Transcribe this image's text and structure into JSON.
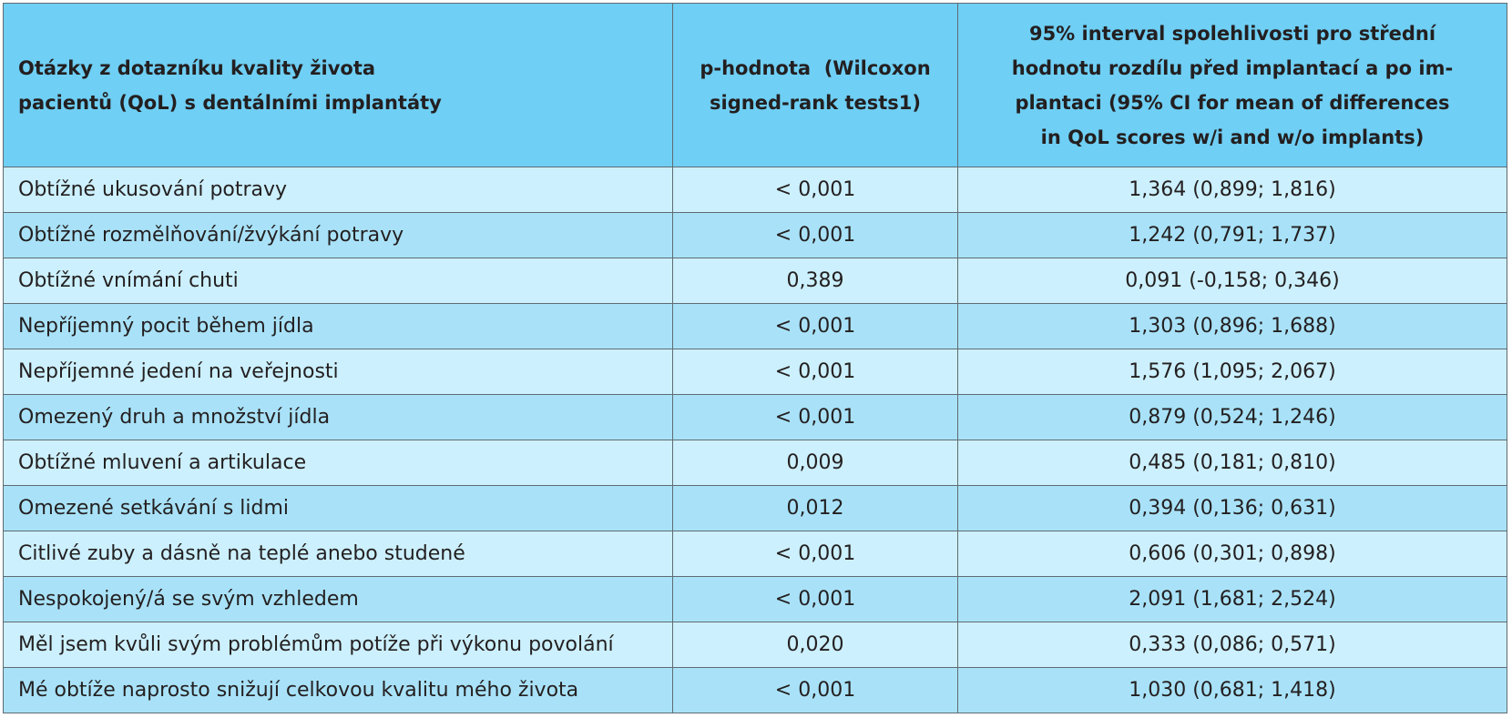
{
  "header": {
    "question": "Otázky z dotazníku kvality života pacientů (QoL) s dentálními implantáty",
    "pvalue": "p-hodnota  (Wilcoxon signed-rank tests1)",
    "ci": "95% interval spolehlivosti pro střední hodnotu rozdílu před implantací a po implantaci (95% CI for mean of differences in QoL scores w/i and w/o implants)"
  },
  "header_lines": {
    "question": [
      "Otázky z dotazníku kvality života",
      "pacientů (QoL) s dentálními implantáty"
    ],
    "pvalue": [
      "p-hodnota  (Wilcoxon",
      "signed-rank tests1)"
    ],
    "ci": [
      "95% interval spolehlivosti pro střední",
      "hodnotu rozdílu před implantací a po im-",
      "plantaci (95% CI for mean of differences",
      "in QoL scores w/i and w/o implants)"
    ]
  },
  "rows": [
    {
      "question": "Obtížné ukusování potravy",
      "p": "< 0,001",
      "ci": "1,364 (0,899; 1,816)"
    },
    {
      "question": "Obtížné rozmělňování/žvýkání potravy",
      "p": "< 0,001",
      "ci": "1,242 (0,791; 1,737)"
    },
    {
      "question": "Obtížné vnímání chuti",
      "p": "0,389",
      "ci": "0,091 (-0,158; 0,346)"
    },
    {
      "question": "Nepříjemný pocit během jídla",
      "p": "< 0,001",
      "ci": "1,303 (0,896; 1,688)"
    },
    {
      "question": "Nepříjemné jedení na veřejnosti",
      "p": "< 0,001",
      "ci": "1,576 (1,095; 2,067)"
    },
    {
      "question": "Omezený druh a množství jídla",
      "p": "< 0,001",
      "ci": "0,879 (0,524; 1,246)"
    },
    {
      "question": "Obtížné mluvení a artikulace",
      "p": "0,009",
      "ci": "0,485 (0,181; 0,810)"
    },
    {
      "question": "Omezené setkávání s lidmi",
      "p": "0,012",
      "ci": "0,394 (0,136; 0,631)"
    },
    {
      "question": "Citlivé zuby a dásně na teplé anebo studené",
      "p": "< 0,001",
      "ci": "0,606 (0,301; 0,898)"
    },
    {
      "question": "Nespokojený/á se svým vzhledem",
      "p": "< 0,001",
      "ci": "2,091 (1,681; 2,524)"
    },
    {
      "question": "Měl jsem kvůli svým problémům potíže při výkonu povolání",
      "p": "0,020",
      "ci": "0,333 (0,086; 0,571)"
    },
    {
      "question": "Mé obtíže naprosto snižují celkovou kvalitu mého života",
      "p": "< 0,001",
      "ci": "1,030 (0,681; 1,418)"
    }
  ],
  "colors": {
    "header_bg": "#6fcff4",
    "row_light": "#ccf0fd",
    "row_dark": "#a9e2f8",
    "border": "#5f6b72"
  }
}
